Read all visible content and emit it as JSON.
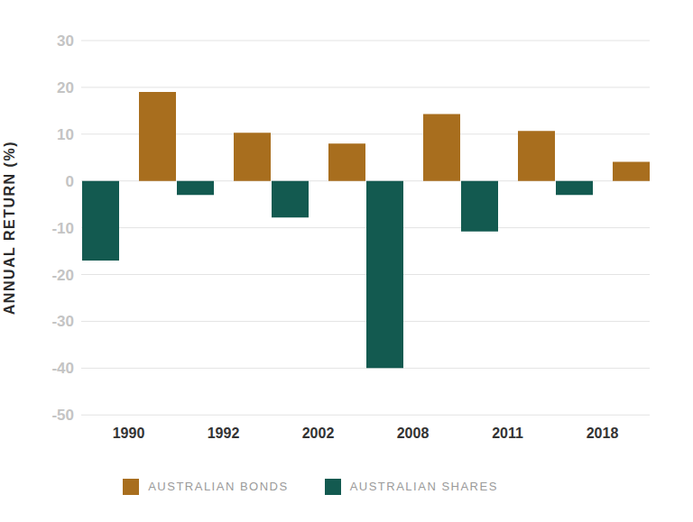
{
  "chart_data": {
    "type": "bar",
    "y_label": "ANNUAL RETURN (%)",
    "categories": [
      "1990",
      "1992",
      "2002",
      "2008",
      "2011",
      "2018"
    ],
    "series": [
      {
        "name": "AUSTRALIAN SHARES",
        "color": "#135a50",
        "values": [
          -17,
          -3,
          -7.8,
          -40,
          -10.8,
          -3
        ]
      },
      {
        "name": "AUSTRALIAN BONDS",
        "color": "#a86e1e",
        "values": [
          19,
          10.3,
          8,
          14.3,
          10.7,
          4.1
        ]
      }
    ],
    "ylim": [
      -50,
      30
    ],
    "yticks": [
      -50,
      -40,
      -30,
      -20,
      -10,
      0,
      10,
      20,
      30
    ],
    "grid": true,
    "legend": "bottom"
  }
}
